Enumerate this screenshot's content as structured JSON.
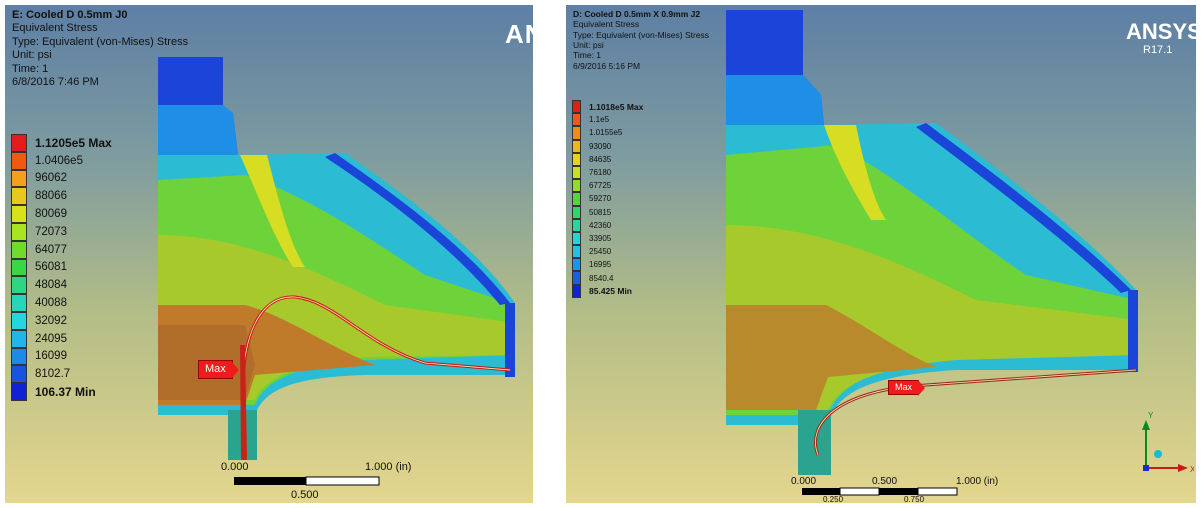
{
  "left_panel": {
    "header": {
      "title": "E: Cooled D 0.5mm J0",
      "result": "Equivalent Stress",
      "type": "Type: Equivalent (von-Mises) Stress",
      "unit": "Unit: psi",
      "time": "Time: 1",
      "timestamp": "6/8/2016 7:46 PM"
    },
    "legend": [
      {
        "label": "1.1205e5 Max",
        "color": "#e31b1b",
        "bold": true
      },
      {
        "label": "1.0406e5",
        "color": "#f05a10"
      },
      {
        "label": "96062",
        "color": "#f2a21a"
      },
      {
        "label": "88066",
        "color": "#e9c81e"
      },
      {
        "label": "80069",
        "color": "#d8e21c"
      },
      {
        "label": "72073",
        "color": "#a9e322"
      },
      {
        "label": "64077",
        "color": "#6fdc2b"
      },
      {
        "label": "56081",
        "color": "#3bd646"
      },
      {
        "label": "48084",
        "color": "#2ed684"
      },
      {
        "label": "40088",
        "color": "#27d6b8"
      },
      {
        "label": "32092",
        "color": "#22d6e2"
      },
      {
        "label": "24095",
        "color": "#1fb6ec"
      },
      {
        "label": "16099",
        "color": "#1b8ae8"
      },
      {
        "label": "8102.7",
        "color": "#1755e0"
      },
      {
        "label": "106.37 Min",
        "color": "#1121d6",
        "bold": true
      }
    ],
    "logo": "AN",
    "max_tag": "Max",
    "scale": {
      "zero": "0.000",
      "end": "1.000 (in)",
      "mid": "0.500"
    }
  },
  "right_panel": {
    "header": {
      "title": "D: Cooled D 0.5mm X 0.9mm J2",
      "result": "Equivalent Stress",
      "type": "Type: Equivalent (von-Mises) Stress",
      "unit": "Unit: psi",
      "time": "Time: 1",
      "timestamp": "6/9/2016 5:16 PM"
    },
    "legend": [
      {
        "label": "1.1018e5 Max",
        "color": "#e31b1b",
        "bold": true
      },
      {
        "label": "1.1e5",
        "color": "#f05a10"
      },
      {
        "label": "1.0155e5",
        "color": "#f28a18"
      },
      {
        "label": "93090",
        "color": "#f2b41c"
      },
      {
        "label": "84635",
        "color": "#e9d21e"
      },
      {
        "label": "76180",
        "color": "#c8e21e"
      },
      {
        "label": "67725",
        "color": "#8fdf26"
      },
      {
        "label": "59270",
        "color": "#52d836"
      },
      {
        "label": "50815",
        "color": "#2fd66a"
      },
      {
        "label": "42360",
        "color": "#28d6a2"
      },
      {
        "label": "33905",
        "color": "#23d6d2"
      },
      {
        "label": "25450",
        "color": "#1fc2ea"
      },
      {
        "label": "16995",
        "color": "#1c94e8"
      },
      {
        "label": "8540.4",
        "color": "#185fe2"
      },
      {
        "label": "85.425 Min",
        "color": "#1121d6",
        "bold": true
      }
    ],
    "logo": "ANSYS",
    "version": "R17.1",
    "max_tag": "Max",
    "scale": {
      "zero": "0.000",
      "half": "0.500",
      "end": "1.000 (in)",
      "q1": "0.250",
      "q3": "0.750"
    },
    "triad": {
      "x": "X",
      "y": "Y"
    }
  }
}
